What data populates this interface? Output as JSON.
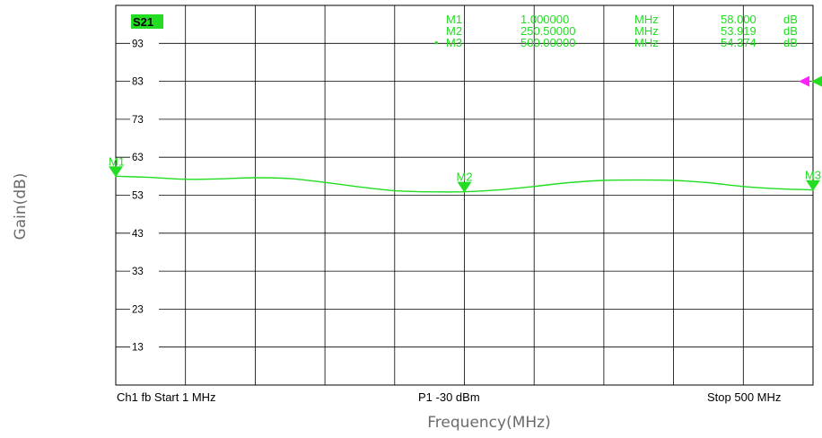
{
  "chart_data": {
    "type": "line",
    "trace_label": "S21",
    "xlabel": "Frequency(MHz)",
    "ylabel": "Gain(dB)",
    "xlim": [
      1,
      500
    ],
    "ylim": [
      3,
      103
    ],
    "y_ticks": [
      "93",
      "83",
      "73",
      "63",
      "53",
      "43",
      "33",
      "23",
      "13"
    ],
    "grid": true,
    "series": [
      {
        "color": "#22dd22",
        "x": [
          1,
          25,
          50,
          75,
          100,
          125,
          150,
          175,
          200,
          225,
          250.5,
          275,
          300,
          325,
          350,
          375,
          400,
          425,
          450,
          475,
          500
        ],
        "y": [
          58.0,
          57.7,
          57.2,
          57.3,
          57.6,
          57.4,
          56.4,
          55.2,
          54.2,
          53.9,
          53.9,
          54.4,
          55.3,
          56.3,
          56.9,
          57.0,
          56.9,
          56.3,
          55.3,
          54.7,
          54.4
        ]
      }
    ],
    "markers": [
      {
        "id": "M1",
        "label": "M1",
        "freq": "1.000000",
        "funit": "MHz",
        "val": "58.000",
        "vunit": "dB",
        "x": 1,
        "y": 58.0,
        "active": false
      },
      {
        "id": "M2",
        "label": "M2",
        "freq": "250.50000",
        "funit": "MHz",
        "val": "53.919",
        "vunit": "dB",
        "x": 250.5,
        "y": 53.919,
        "active": false
      },
      {
        "id": "M3",
        "label": "M3",
        "freq": "500.00000",
        "funit": "MHz",
        "val": "54.374",
        "vunit": "dB",
        "x": 500,
        "y": 54.374,
        "active": true
      }
    ],
    "active_bullet": "•",
    "footer": {
      "left": "Ch1  fb  Start  1 MHz",
      "center": "P1   -30 dBm",
      "right": "Stop  500 MHz"
    },
    "ref_level": 83,
    "colors": {
      "trace": "#22dd22",
      "ref": "#ff22ff",
      "grid": "#000000",
      "label_bg": "#22dd22"
    }
  }
}
